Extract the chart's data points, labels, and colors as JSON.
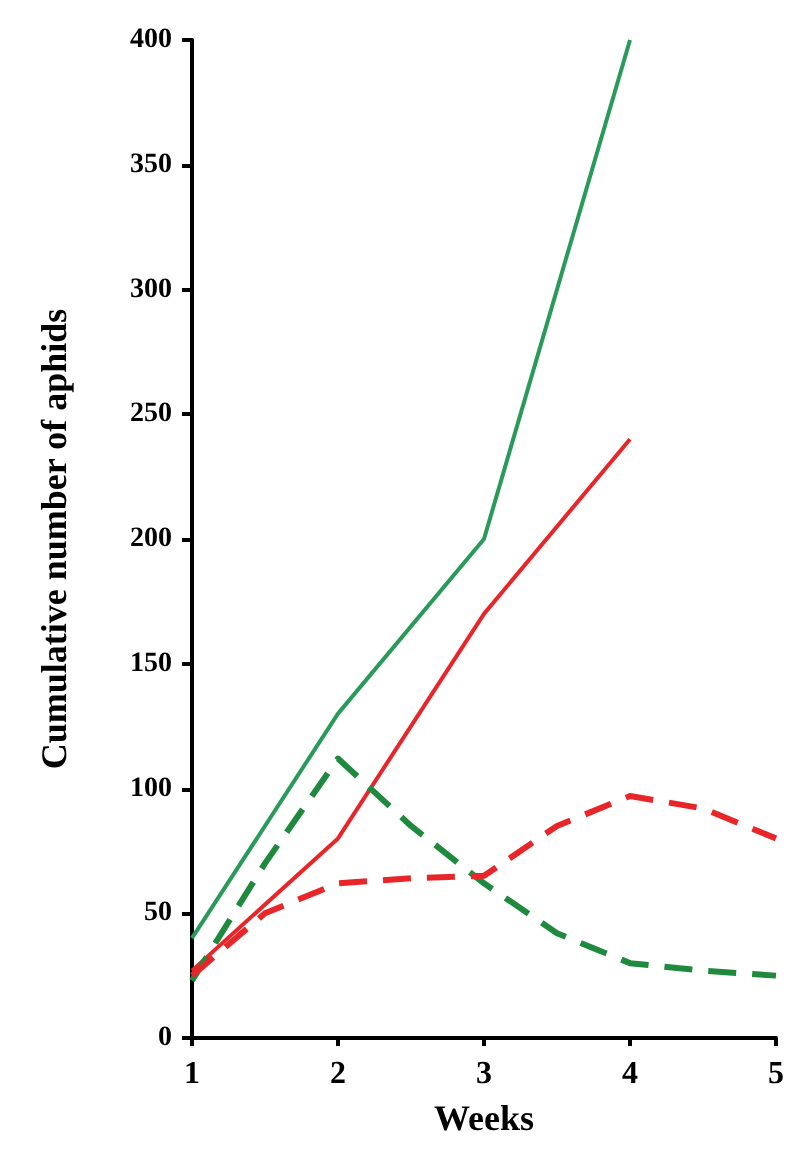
{
  "chart_data": {
    "type": "line",
    "xlabel": "Weeks",
    "ylabel": "Cumulative number of aphids",
    "xlim": [
      1,
      5
    ],
    "xticks": [
      1,
      2,
      3,
      4,
      5
    ],
    "ylim": [
      0,
      400
    ],
    "yticks": [
      0,
      50,
      100,
      150,
      200,
      250,
      300,
      350,
      400
    ],
    "grid": false,
    "marker": "none",
    "series": [
      {
        "color": "#2a9a5a",
        "line_style": "solid",
        "x": [
          1,
          2,
          3,
          4
        ],
        "values": [
          40,
          130,
          200,
          400
        ]
      },
      {
        "color": "#e8262a",
        "line_style": "solid",
        "x": [
          1,
          2,
          3,
          4
        ],
        "values": [
          27,
          80,
          170,
          240
        ]
      },
      {
        "color": "#1f8a3e",
        "line_style": "dashed",
        "x": [
          1,
          1.5,
          2,
          2.5,
          3,
          3.5,
          4,
          4.5,
          5
        ],
        "values": [
          23,
          70,
          112,
          85,
          62,
          42,
          30,
          27,
          25
        ]
      },
      {
        "color": "#e8262a",
        "line_style": "dashed",
        "x": [
          1,
          1.5,
          2,
          2.5,
          3,
          3.5,
          4,
          4.5,
          5
        ],
        "values": [
          25,
          50,
          62,
          64,
          65,
          85,
          97,
          92,
          80
        ]
      }
    ]
  }
}
